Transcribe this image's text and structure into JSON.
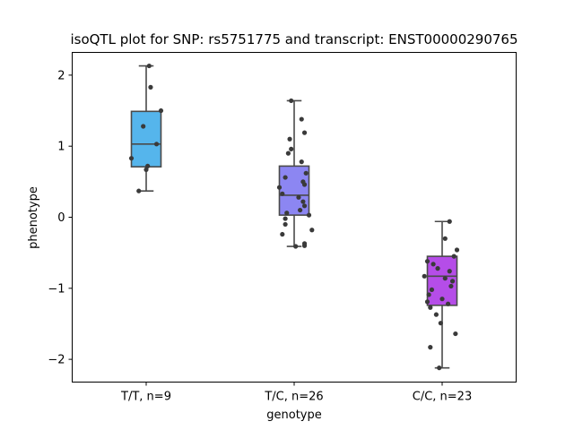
{
  "chart_data": {
    "type": "box",
    "title": "isoQTL plot for SNP: rs5751775 and transcript: ENST00000290765",
    "xlabel": "genotype",
    "ylabel": "phenotype",
    "ylim": [
      -2.32,
      2.32
    ],
    "yticks": [
      2,
      1,
      0,
      -1,
      -2
    ],
    "ytick_labels": [
      "2",
      "1",
      "0",
      "−1",
      "−2"
    ],
    "grid": false,
    "categories": [
      "T/T, n=9",
      "T/C, n=26",
      "C/C, n=23"
    ],
    "box_colors": [
      "#55b5ec",
      "#8c86f2",
      "#b54de8"
    ],
    "point_color": "#3a3a3a",
    "line_color": "#4a4a4a",
    "boxes": [
      {
        "whisker_low": 0.37,
        "q1": 0.71,
        "median": 1.03,
        "q3": 1.49,
        "whisker_high": 2.13
      },
      {
        "whisker_low": -0.41,
        "q1": 0.03,
        "median": 0.31,
        "q3": 0.72,
        "whisker_high": 1.64
      },
      {
        "whisker_low": -2.12,
        "q1": -1.24,
        "median": -0.83,
        "q3": -0.55,
        "whisker_high": -0.06
      }
    ],
    "points": [
      [
        {
          "jitter": 0.02,
          "y": 2.13
        },
        {
          "jitter": 0.03,
          "y": 1.83
        },
        {
          "jitter": 0.1,
          "y": 1.5
        },
        {
          "jitter": -0.02,
          "y": 1.28
        },
        {
          "jitter": 0.07,
          "y": 1.03
        },
        {
          "jitter": -0.1,
          "y": 0.83
        },
        {
          "jitter": 0.01,
          "y": 0.72
        },
        {
          "jitter": 0.0,
          "y": 0.67
        },
        {
          "jitter": -0.05,
          "y": 0.37
        }
      ],
      [
        {
          "jitter": -0.02,
          "y": 1.64
        },
        {
          "jitter": 0.05,
          "y": 1.38
        },
        {
          "jitter": 0.07,
          "y": 1.19
        },
        {
          "jitter": -0.03,
          "y": 1.1
        },
        {
          "jitter": -0.02,
          "y": 0.96
        },
        {
          "jitter": -0.04,
          "y": 0.9
        },
        {
          "jitter": 0.05,
          "y": 0.78
        },
        {
          "jitter": 0.08,
          "y": 0.62
        },
        {
          "jitter": -0.06,
          "y": 0.56
        },
        {
          "jitter": 0.06,
          "y": 0.5
        },
        {
          "jitter": 0.07,
          "y": 0.46
        },
        {
          "jitter": -0.1,
          "y": 0.42
        },
        {
          "jitter": -0.08,
          "y": 0.33
        },
        {
          "jitter": 0.03,
          "y": 0.28
        },
        {
          "jitter": 0.06,
          "y": 0.22
        },
        {
          "jitter": 0.07,
          "y": 0.16
        },
        {
          "jitter": 0.04,
          "y": 0.1
        },
        {
          "jitter": -0.05,
          "y": 0.06
        },
        {
          "jitter": 0.1,
          "y": 0.03
        },
        {
          "jitter": -0.06,
          "y": -0.02
        },
        {
          "jitter": -0.06,
          "y": -0.1
        },
        {
          "jitter": 0.12,
          "y": -0.18
        },
        {
          "jitter": -0.08,
          "y": -0.24
        },
        {
          "jitter": 0.07,
          "y": -0.37
        },
        {
          "jitter": 0.07,
          "y": -0.4
        },
        {
          "jitter": 0.01,
          "y": -0.41
        }
      ],
      [
        {
          "jitter": 0.05,
          "y": -0.06
        },
        {
          "jitter": 0.02,
          "y": -0.3
        },
        {
          "jitter": 0.1,
          "y": -0.46
        },
        {
          "jitter": 0.08,
          "y": -0.55
        },
        {
          "jitter": -0.1,
          "y": -0.62
        },
        {
          "jitter": -0.06,
          "y": -0.66
        },
        {
          "jitter": -0.03,
          "y": -0.72
        },
        {
          "jitter": 0.05,
          "y": -0.76
        },
        {
          "jitter": -0.12,
          "y": -0.83
        },
        {
          "jitter": 0.02,
          "y": -0.86
        },
        {
          "jitter": 0.07,
          "y": -0.9
        },
        {
          "jitter": 0.06,
          "y": -0.97
        },
        {
          "jitter": -0.07,
          "y": -1.02
        },
        {
          "jitter": -0.09,
          "y": -1.09
        },
        {
          "jitter": 0.0,
          "y": -1.15
        },
        {
          "jitter": -0.1,
          "y": -1.19
        },
        {
          "jitter": -0.08,
          "y": -1.27
        },
        {
          "jitter": -0.04,
          "y": -1.37
        },
        {
          "jitter": -0.01,
          "y": -1.49
        },
        {
          "jitter": 0.09,
          "y": -1.64
        },
        {
          "jitter": -0.08,
          "y": -1.83
        },
        {
          "jitter": -0.02,
          "y": -2.12
        },
        {
          "jitter": 0.04,
          "y": -1.22
        }
      ]
    ]
  }
}
